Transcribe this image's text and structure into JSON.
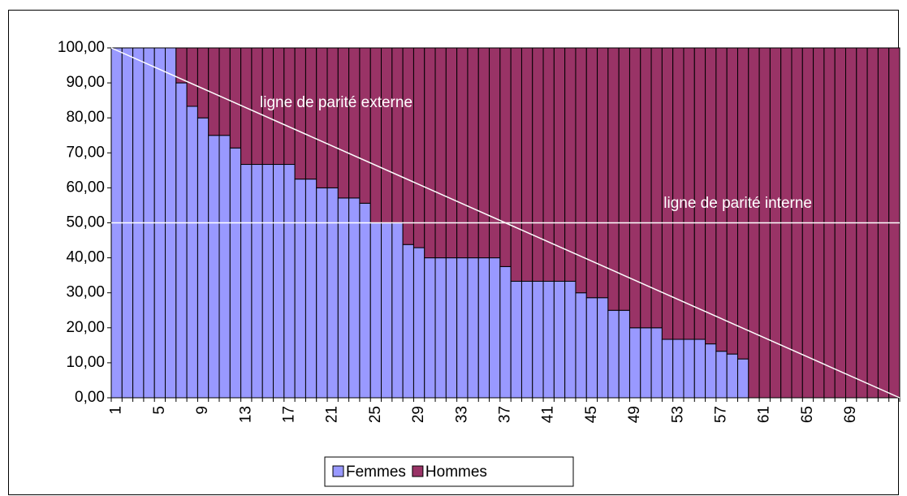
{
  "chart_data": {
    "type": "stacked_bar",
    "categories": [
      1,
      null,
      null,
      null,
      5,
      null,
      null,
      null,
      9,
      null,
      null,
      null,
      13,
      null,
      null,
      null,
      17,
      null,
      null,
      null,
      21,
      null,
      null,
      null,
      25,
      null,
      null,
      null,
      29,
      null,
      null,
      null,
      33,
      null,
      null,
      null,
      37,
      null,
      null,
      null,
      41,
      null,
      null,
      null,
      45,
      null,
      null,
      null,
      49,
      null,
      null,
      null,
      53,
      null,
      null,
      null,
      57,
      null,
      null,
      null,
      61,
      null,
      null,
      null,
      65,
      null,
      null,
      null,
      69,
      null,
      null,
      null,
      null
    ],
    "series": [
      {
        "name": "Femmes",
        "color": "#9999ff",
        "values": [
          100,
          100,
          100,
          100,
          100,
          100,
          90,
          83.3,
          80,
          75,
          75,
          71.4,
          66.7,
          66.7,
          66.7,
          66.7,
          66.7,
          62.5,
          62.5,
          60,
          60,
          57.1,
          57.1,
          55.6,
          50,
          50,
          50,
          43.8,
          42.9,
          40,
          40,
          40,
          40,
          40,
          40,
          40,
          37.5,
          33.3,
          33.3,
          33.3,
          33.3,
          33.3,
          33.3,
          30,
          28.6,
          28.6,
          25,
          25,
          20,
          20,
          20,
          16.7,
          16.7,
          16.7,
          16.7,
          15.4,
          13.3,
          12.5,
          11.1,
          0,
          0,
          0,
          0,
          0,
          0,
          0,
          0,
          0,
          0,
          0,
          0,
          0,
          0
        ]
      },
      {
        "name": "Hommes",
        "color": "#993366",
        "values": [
          0,
          0,
          0,
          0,
          0,
          0,
          10,
          16.7,
          20,
          25,
          25,
          28.6,
          33.3,
          33.3,
          33.3,
          33.3,
          33.3,
          37.5,
          37.5,
          40,
          40,
          42.9,
          42.9,
          44.4,
          50,
          50,
          50,
          56.2,
          57.1,
          60,
          60,
          60,
          60,
          60,
          60,
          60,
          62.5,
          66.7,
          66.7,
          66.7,
          66.7,
          66.7,
          66.7,
          70,
          71.4,
          71.4,
          75,
          75,
          80,
          80,
          80,
          83.3,
          83.3,
          83.3,
          83.3,
          84.6,
          86.7,
          87.5,
          88.9,
          100,
          100,
          100,
          100,
          100,
          100,
          100,
          100,
          100,
          100,
          100,
          100,
          100,
          100
        ]
      }
    ],
    "ylim": [
      0,
      100
    ],
    "yticks": [
      {
        "value": 0,
        "label": "0,00"
      },
      {
        "value": 10,
        "label": "10,00"
      },
      {
        "value": 20,
        "label": "20,00"
      },
      {
        "value": 30,
        "label": "30,00"
      },
      {
        "value": 40,
        "label": "40,00"
      },
      {
        "value": 50,
        "label": "50,00"
      },
      {
        "value": 60,
        "label": "60,00"
      },
      {
        "value": 70,
        "label": "70,00"
      },
      {
        "value": 80,
        "label": "80,00"
      },
      {
        "value": 90,
        "label": "90,00"
      },
      {
        "value": 100,
        "label": "100,00"
      }
    ],
    "parity_lines": [
      {
        "label": "ligne de parité externe",
        "from": 100,
        "to": 0
      },
      {
        "label": "ligne de parité interne",
        "from": 50,
        "to": 50
      }
    ],
    "legend": "bottom"
  }
}
